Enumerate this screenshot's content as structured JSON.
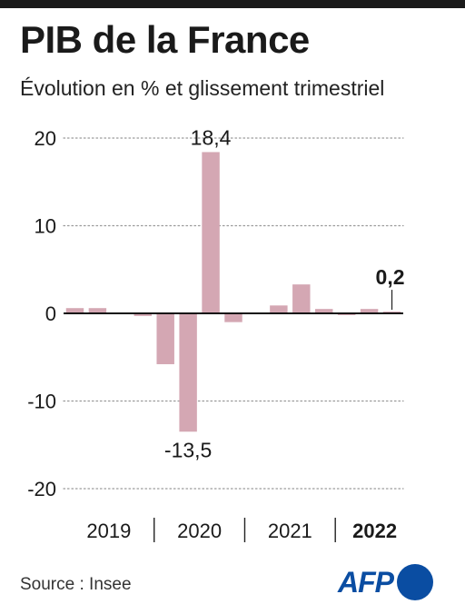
{
  "header": {
    "title": "PIB de la France",
    "subtitle": "Évolution en % et glissement trimestriel"
  },
  "footer": {
    "source": "Source : Insee",
    "logo_text": "AFP"
  },
  "colors": {
    "bar": "#d4a7b3",
    "text": "#1a1a1a",
    "grid": "#9a9a9a",
    "logo": "#0a4da2"
  },
  "chart_data": {
    "type": "bar",
    "title": "PIB de la France",
    "subtitle": "Évolution en % et glissement trimestriel",
    "ylim": [
      -20,
      20
    ],
    "yticks": [
      20,
      10,
      0,
      -10,
      -20
    ],
    "grid": true,
    "x": [
      "2019 T1",
      "2019 T2",
      "2019 T3",
      "2019 T4",
      "2020 T1",
      "2020 T2",
      "2020 T3",
      "2020 T4",
      "2021 T1",
      "2021 T2",
      "2021 T3",
      "2021 T4",
      "2022 T1",
      "2022 T2",
      "2022 T3"
    ],
    "values": [
      0.6,
      0.6,
      0.0,
      -0.3,
      -5.8,
      -13.5,
      18.4,
      -1.0,
      0.0,
      0.9,
      3.3,
      0.5,
      -0.2,
      0.5,
      0.2
    ],
    "year_groups": [
      {
        "label": "2019",
        "quarters": 4,
        "bold": false
      },
      {
        "label": "2020",
        "quarters": 4,
        "bold": false
      },
      {
        "label": "2021",
        "quarters": 4,
        "bold": false
      },
      {
        "label": "2022",
        "quarters": 3,
        "bold": true
      }
    ],
    "data_labels": [
      {
        "index": 6,
        "text": "18,4",
        "bold": false
      },
      {
        "index": 5,
        "text": "-13,5",
        "bold": false
      },
      {
        "index": 14,
        "text": "0,2",
        "bold": true
      }
    ]
  }
}
